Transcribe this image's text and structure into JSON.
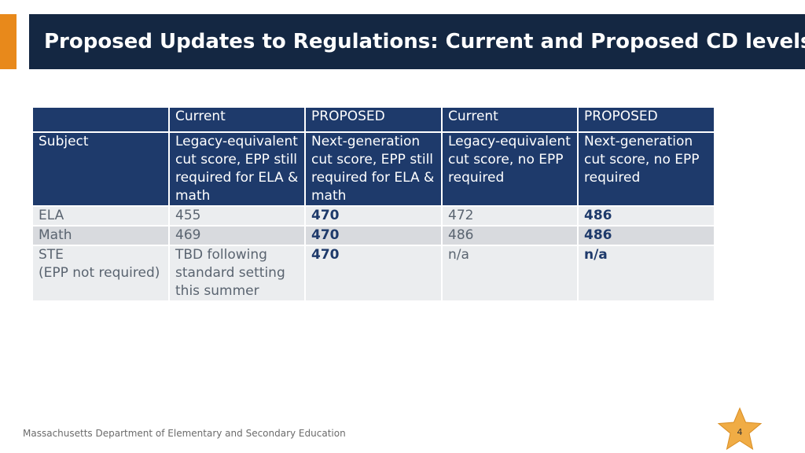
{
  "slide": {
    "title": "Proposed Updates to Regulations: Current and Proposed CD levels",
    "footer": "Massachusetts Department of Elementary and Secondary Education",
    "page_number": "4",
    "colors": {
      "title_bar": "#142742",
      "accent": "#e8891b",
      "table_header": "#1e3a6b",
      "row_light": "#ebedef",
      "row_mid": "#d8dade",
      "star": "#f0ac45"
    }
  },
  "table": {
    "header": [
      "",
      "Current",
      "PROPOSED",
      "Current",
      "PROPOSED"
    ],
    "subheader": {
      "label": "Subject",
      "cells": [
        "Legacy-equivalent cut score, EPP still required for ELA & math",
        "Next-generation cut score, EPP still required for ELA & math",
        "Legacy-equivalent cut score, no EPP required",
        "Next-generation cut score, no EPP required"
      ]
    },
    "rows": [
      {
        "subject": "ELA",
        "values": [
          "455",
          "470",
          "472",
          "486"
        ]
      },
      {
        "subject": "Math",
        "values": [
          "469",
          "470",
          "486",
          "486"
        ]
      },
      {
        "subject": "STE\n(EPP not required)",
        "values": [
          "TBD following standard setting this summer",
          "470",
          "n/a",
          "n/a"
        ]
      }
    ]
  }
}
